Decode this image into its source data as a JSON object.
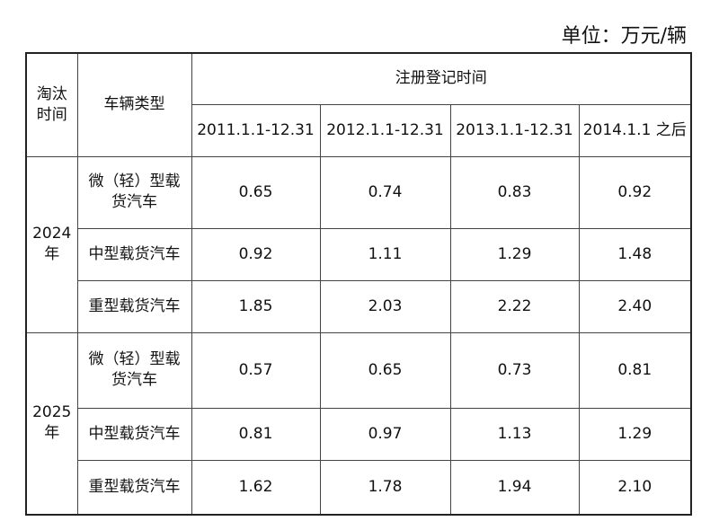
{
  "unit": "单位：万元/辆",
  "header": {
    "elimination_time": "淘汰时间",
    "vehicle_type": "车辆类型",
    "registration_time": "注册登记时间",
    "periods": [
      "2011.1.1-12.31",
      "2012.1.1-12.31",
      "2013.1.1-12.31",
      "2014.1.1 之后"
    ]
  },
  "groups": [
    {
      "year": "2024年",
      "rows": [
        {
          "type": "微（轻）型载货汽车",
          "values": [
            "0.65",
            "0.74",
            "0.83",
            "0.92"
          ]
        },
        {
          "type": "中型载货汽车",
          "values": [
            "0.92",
            "1.11",
            "1.29",
            "1.48"
          ]
        },
        {
          "type": "重型载货汽车",
          "values": [
            "1.85",
            "2.03",
            "2.22",
            "2.40"
          ]
        }
      ]
    },
    {
      "year": "2025年",
      "rows": [
        {
          "type": "微（轻）型载货汽车",
          "values": [
            "0.57",
            "0.65",
            "0.73",
            "0.81"
          ]
        },
        {
          "type": "中型载货汽车",
          "values": [
            "0.81",
            "0.97",
            "1.13",
            "1.29"
          ]
        },
        {
          "type": "重型载货汽车",
          "values": [
            "1.62",
            "1.78",
            "1.94",
            "2.10"
          ]
        }
      ]
    }
  ]
}
